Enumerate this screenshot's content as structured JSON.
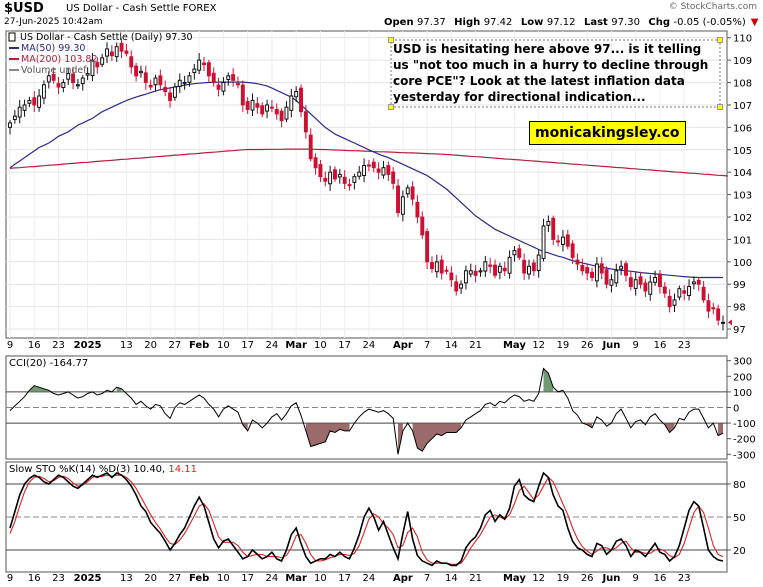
{
  "header": {
    "symbol": "$USD",
    "name": "US Dollar - Cash Settle FOREX",
    "date": "27-Jun-2025 10:42am",
    "brand": "© StockCharts.com",
    "quote": {
      "open_label": "Open",
      "open": "97.37",
      "high_label": "High",
      "high": "97.42",
      "low_label": "Low",
      "low": "97.12",
      "last_label": "Last",
      "last": "97.30",
      "chg_label": "Chg",
      "chg": "-0.05 (-0.05%)",
      "chg_arrow": "▼"
    }
  },
  "colors": {
    "up_candle": "#111111",
    "down_candle": "#cc1133",
    "ma50": "#2a2a8c",
    "ma200": "#b02040",
    "cci_fill": "#5a8a5a",
    "cci_neg_fill": "#8a5050",
    "sto_k": "#000000",
    "sto_d": "#dd2222",
    "highlight": "#ffff00"
  },
  "annotations": {
    "comment": "USD is hesitating here above 97... is it telling us \"not too much in a hurry to decline through core PCE\"? Look at the latest inflation data yesterday for directional indication...",
    "website": "monicakingsley.co"
  },
  "chart_data": [
    {
      "type": "candlestick",
      "title": "US Dollar - Cash Settle (Daily) 97.30",
      "legend": [
        {
          "label": "US Dollar - Cash Settle (Daily) 97.30",
          "color": "#000000"
        },
        {
          "label": "MA(50) 99.30",
          "color": "#2a2a8c"
        },
        {
          "label": "MA(200) 103.82",
          "color": "#b02040"
        },
        {
          "label": "Volume undef",
          "color": "#888888"
        }
      ],
      "legend_position": "top-left",
      "ylim": [
        96.6,
        110.3
      ],
      "y_ticks": [
        97,
        98,
        99,
        100,
        101,
        102,
        103,
        104,
        105,
        106,
        107,
        108,
        109,
        110
      ],
      "x_tick_labels": [
        "9",
        "16",
        "23",
        "2025",
        "13",
        "20",
        "27",
        "Feb",
        "10",
        "17",
        "24",
        "Mar",
        "10",
        "17",
        "24",
        "Apr",
        "7",
        "14",
        "21",
        "May",
        "12",
        "19",
        "26",
        "Jun",
        "9",
        "16",
        "23"
      ],
      "x_tick_day_index": [
        0,
        5,
        10,
        16,
        24,
        29,
        34,
        39,
        44,
        49,
        54,
        59,
        64,
        69,
        74,
        81,
        86,
        91,
        96,
        104,
        109,
        114,
        119,
        124,
        129,
        134,
        139
      ],
      "grid": true,
      "close": [
        106.2,
        106.5,
        106.9,
        107.0,
        107.2,
        107.0,
        107.4,
        107.9,
        108.3,
        108.1,
        107.8,
        108.0,
        108.4,
        108.0,
        107.9,
        108.2,
        108.4,
        109.0,
        108.7,
        109.1,
        109.5,
        109.2,
        109.6,
        109.4,
        109.3,
        108.7,
        108.3,
        108.5,
        108.0,
        107.8,
        108.2,
        107.9,
        107.6,
        107.2,
        107.8,
        108.1,
        108.0,
        108.3,
        108.6,
        109.0,
        108.8,
        108.3,
        108.0,
        107.7,
        108.0,
        108.3,
        108.1,
        107.9,
        107.0,
        106.8,
        107.2,
        106.9,
        106.6,
        107.0,
        106.9,
        106.6,
        106.3,
        106.9,
        107.4,
        107.6,
        106.7,
        105.8,
        104.6,
        104.2,
        103.8,
        103.6,
        104.0,
        103.7,
        103.9,
        103.5,
        103.4,
        103.8,
        104.0,
        104.3,
        104.3,
        104.2,
        104.0,
        104.2,
        103.9,
        103.5,
        102.2,
        102.9,
        103.3,
        102.8,
        102.0,
        101.2,
        100.0,
        99.7,
        100.0,
        99.5,
        99.6,
        99.2,
        98.7,
        99.0,
        99.6,
        99.6,
        99.4,
        99.6,
        100.0,
        99.8,
        99.4,
        99.8,
        99.6,
        100.2,
        100.5,
        100.2,
        99.5,
        99.8,
        99.6,
        100.3,
        101.6,
        101.8,
        101.0,
        100.9,
        101.1,
        100.7,
        100.2,
        99.9,
        99.6,
        99.5,
        99.3,
        99.9,
        99.5,
        99.0,
        99.2,
        99.6,
        99.8,
        99.4,
        98.9,
        99.2,
        99.0,
        98.7,
        99.1,
        99.3,
        98.9,
        98.6,
        98.0,
        98.3,
        98.8,
        98.6,
        98.9,
        99.1,
        99.0,
        98.3,
        97.8,
        97.9,
        97.4,
        97.3
      ],
      "ma50": [
        104.2,
        104.35,
        104.5,
        104.65,
        104.8,
        104.95,
        105.1,
        105.2,
        105.3,
        105.45,
        105.6,
        105.7,
        105.8,
        105.95,
        106.1,
        106.2,
        106.3,
        106.4,
        106.55,
        106.7,
        106.8,
        106.9,
        107.0,
        107.1,
        107.2,
        107.28,
        107.35,
        107.42,
        107.48,
        107.55,
        107.62,
        107.68,
        107.72,
        107.76,
        107.8,
        107.84,
        107.88,
        107.92,
        107.95,
        107.97,
        107.99,
        108.0,
        108.01,
        108.02,
        108.02,
        108.02,
        108.02,
        108.02,
        108.02,
        108.0,
        107.98,
        107.95,
        107.9,
        107.85,
        107.75,
        107.65,
        107.55,
        107.45,
        107.35,
        107.2,
        107.0,
        106.8,
        106.6,
        106.4,
        106.2,
        106.0,
        105.85,
        105.7,
        105.6,
        105.5,
        105.4,
        105.3,
        105.2,
        105.1,
        105.0,
        104.9,
        104.8,
        104.72,
        104.65,
        104.55,
        104.45,
        104.35,
        104.25,
        104.15,
        104.05,
        103.95,
        103.85,
        103.7,
        103.55,
        103.4,
        103.25,
        103.05,
        102.85,
        102.65,
        102.45,
        102.25,
        102.05,
        101.9,
        101.75,
        101.6,
        101.45,
        101.35,
        101.25,
        101.15,
        101.05,
        100.95,
        100.85,
        100.75,
        100.65,
        100.55,
        100.45,
        100.4,
        100.32,
        100.25,
        100.2,
        100.12,
        100.05,
        100.0,
        99.95,
        99.9,
        99.85,
        99.8,
        99.75,
        99.72,
        99.68,
        99.65,
        99.62,
        99.6,
        99.58,
        99.55,
        99.52,
        99.5,
        99.48,
        99.46,
        99.44,
        99.42,
        99.4,
        99.38,
        99.36,
        99.34,
        99.32,
        99.31,
        99.3,
        99.3,
        99.3,
        99.3,
        99.3,
        99.3
      ],
      "ma200": [
        104.17,
        104.19,
        104.2,
        104.22,
        104.24,
        104.25,
        104.27,
        104.29,
        104.31,
        104.32,
        104.34,
        104.36,
        104.38,
        104.39,
        104.41,
        104.43,
        104.44,
        104.46,
        104.48,
        104.5,
        104.51,
        104.53,
        104.55,
        104.57,
        104.58,
        104.6,
        104.62,
        104.63,
        104.65,
        104.67,
        104.69,
        104.7,
        104.72,
        104.74,
        104.76,
        104.77,
        104.79,
        104.81,
        104.82,
        104.84,
        104.86,
        104.88,
        104.89,
        104.91,
        104.93,
        104.95,
        104.96,
        104.98,
        105.0,
        105.01,
        105.01,
        105.01,
        105.01,
        105.02,
        105.02,
        105.02,
        105.02,
        105.03,
        105.03,
        105.03,
        105.03,
        105.03,
        105.03,
        105.02,
        105.01,
        105.01,
        105.0,
        104.99,
        104.98,
        104.97,
        104.96,
        104.96,
        104.95,
        104.94,
        104.93,
        104.92,
        104.91,
        104.91,
        104.9,
        104.89,
        104.88,
        104.87,
        104.86,
        104.86,
        104.85,
        104.84,
        104.83,
        104.82,
        104.81,
        104.8,
        104.79,
        104.77,
        104.76,
        104.74,
        104.72,
        104.71,
        104.69,
        104.68,
        104.66,
        104.64,
        104.63,
        104.61,
        104.59,
        104.58,
        104.56,
        104.55,
        104.53,
        104.51,
        104.5,
        104.48,
        104.46,
        104.45,
        104.43,
        104.41,
        104.4,
        104.38,
        104.36,
        104.35,
        104.33,
        104.31,
        104.3,
        104.28,
        104.26,
        104.25,
        104.23,
        104.21,
        104.2,
        104.18,
        104.16,
        104.15,
        104.13,
        104.11,
        104.1,
        104.08,
        104.06,
        104.05,
        104.03,
        104.01,
        104.0,
        103.98,
        103.96,
        103.95,
        103.93,
        103.91,
        103.9,
        103.88,
        103.86,
        103.85,
        103.83
      ]
    },
    {
      "type": "line",
      "title": "CCI(20) -164.77",
      "ylim": [
        -330,
        330
      ],
      "y_ticks": [
        -300,
        -200,
        -100,
        0,
        100,
        200,
        300
      ],
      "reference_lines": [
        100,
        0,
        -100
      ],
      "values": [
        -20,
        10,
        40,
        70,
        110,
        140,
        130,
        120,
        110,
        90,
        80,
        90,
        100,
        80,
        60,
        70,
        90,
        100,
        80,
        90,
        110,
        100,
        130,
        120,
        90,
        60,
        20,
        40,
        10,
        -10,
        20,
        10,
        -40,
        -70,
        0,
        30,
        20,
        40,
        60,
        80,
        60,
        20,
        -10,
        -60,
        -10,
        10,
        -10,
        -30,
        -110,
        -150,
        -80,
        -100,
        -130,
        -100,
        -60,
        -40,
        -80,
        -40,
        10,
        30,
        -50,
        -150,
        -250,
        -240,
        -230,
        -220,
        -150,
        -160,
        -140,
        -150,
        -150,
        -100,
        -60,
        -30,
        -10,
        -20,
        -30,
        -20,
        -40,
        -70,
        -300,
        -150,
        -100,
        -150,
        -260,
        -280,
        -230,
        -200,
        -170,
        -180,
        -160,
        -160,
        -160,
        -130,
        -80,
        -60,
        -40,
        -20,
        20,
        30,
        10,
        40,
        30,
        60,
        80,
        70,
        40,
        50,
        40,
        90,
        250,
        220,
        130,
        100,
        110,
        60,
        -20,
        -50,
        -100,
        -110,
        -130,
        -60,
        -80,
        -120,
        -100,
        -40,
        -10,
        -70,
        -130,
        -90,
        -80,
        -110,
        -60,
        -40,
        -80,
        -110,
        -160,
        -130,
        -70,
        -80,
        -30,
        -10,
        -10,
        -70,
        -130,
        -100,
        -180,
        -165
      ]
    },
    {
      "type": "line",
      "title": "Slow STO %K(14) %D(3) 10.40, 14.11",
      "ylim": [
        0,
        100
      ],
      "y_ticks": [
        20,
        50,
        80
      ],
      "reference_lines": [
        20,
        50,
        80
      ],
      "series": [
        {
          "name": "%K(14)",
          "values": [
            40,
            55,
            70,
            80,
            85,
            88,
            86,
            82,
            80,
            84,
            88,
            86,
            82,
            78,
            76,
            80,
            84,
            88,
            86,
            88,
            90,
            86,
            90,
            88,
            84,
            78,
            70,
            60,
            55,
            45,
            40,
            35,
            28,
            20,
            26,
            34,
            40,
            50,
            60,
            68,
            60,
            45,
            30,
            22,
            28,
            30,
            24,
            18,
            12,
            14,
            20,
            16,
            12,
            14,
            18,
            12,
            10,
            20,
            34,
            40,
            26,
            14,
            8,
            10,
            12,
            12,
            16,
            14,
            18,
            14,
            12,
            22,
            34,
            50,
            58,
            50,
            38,
            46,
            34,
            22,
            12,
            35,
            55,
            30,
            15,
            10,
            8,
            6,
            10,
            8,
            8,
            6,
            6,
            10,
            22,
            28,
            32,
            40,
            52,
            56,
            46,
            52,
            48,
            58,
            78,
            84,
            70,
            66,
            64,
            78,
            90,
            86,
            70,
            60,
            56,
            40,
            28,
            22,
            20,
            16,
            14,
            26,
            24,
            16,
            20,
            28,
            30,
            24,
            14,
            20,
            18,
            14,
            20,
            26,
            18,
            16,
            10,
            14,
            24,
            40,
            56,
            64,
            60,
            40,
            20,
            14,
            11,
            10
          ]
        },
        {
          "name": "%D(3)",
          "values": [
            35,
            46,
            60,
            73,
            82,
            86,
            87,
            85,
            82,
            83,
            86,
            87,
            85,
            81,
            78,
            79,
            82,
            86,
            87,
            87,
            88,
            87,
            88,
            88,
            86,
            82,
            76,
            68,
            60,
            52,
            45,
            39,
            32,
            26,
            25,
            29,
            35,
            43,
            51,
            60,
            62,
            56,
            44,
            32,
            27,
            27,
            27,
            24,
            18,
            14,
            15,
            16,
            16,
            14,
            14,
            14,
            13,
            15,
            22,
            33,
            34,
            26,
            16,
            10,
            10,
            11,
            13,
            14,
            16,
            16,
            15,
            17,
            24,
            36,
            48,
            53,
            50,
            44,
            40,
            34,
            22,
            24,
            36,
            40,
            32,
            18,
            11,
            8,
            8,
            8,
            8,
            7,
            7,
            8,
            14,
            22,
            28,
            34,
            42,
            50,
            52,
            50,
            48,
            52,
            62,
            74,
            78,
            72,
            66,
            70,
            78,
            86,
            82,
            72,
            62,
            52,
            40,
            30,
            23,
            19,
            16,
            19,
            22,
            22,
            20,
            22,
            26,
            28,
            22,
            18,
            18,
            17,
            17,
            20,
            21,
            19,
            15,
            13,
            16,
            26,
            40,
            54,
            60,
            54,
            40,
            24,
            16,
            14
          ]
        }
      ]
    }
  ]
}
